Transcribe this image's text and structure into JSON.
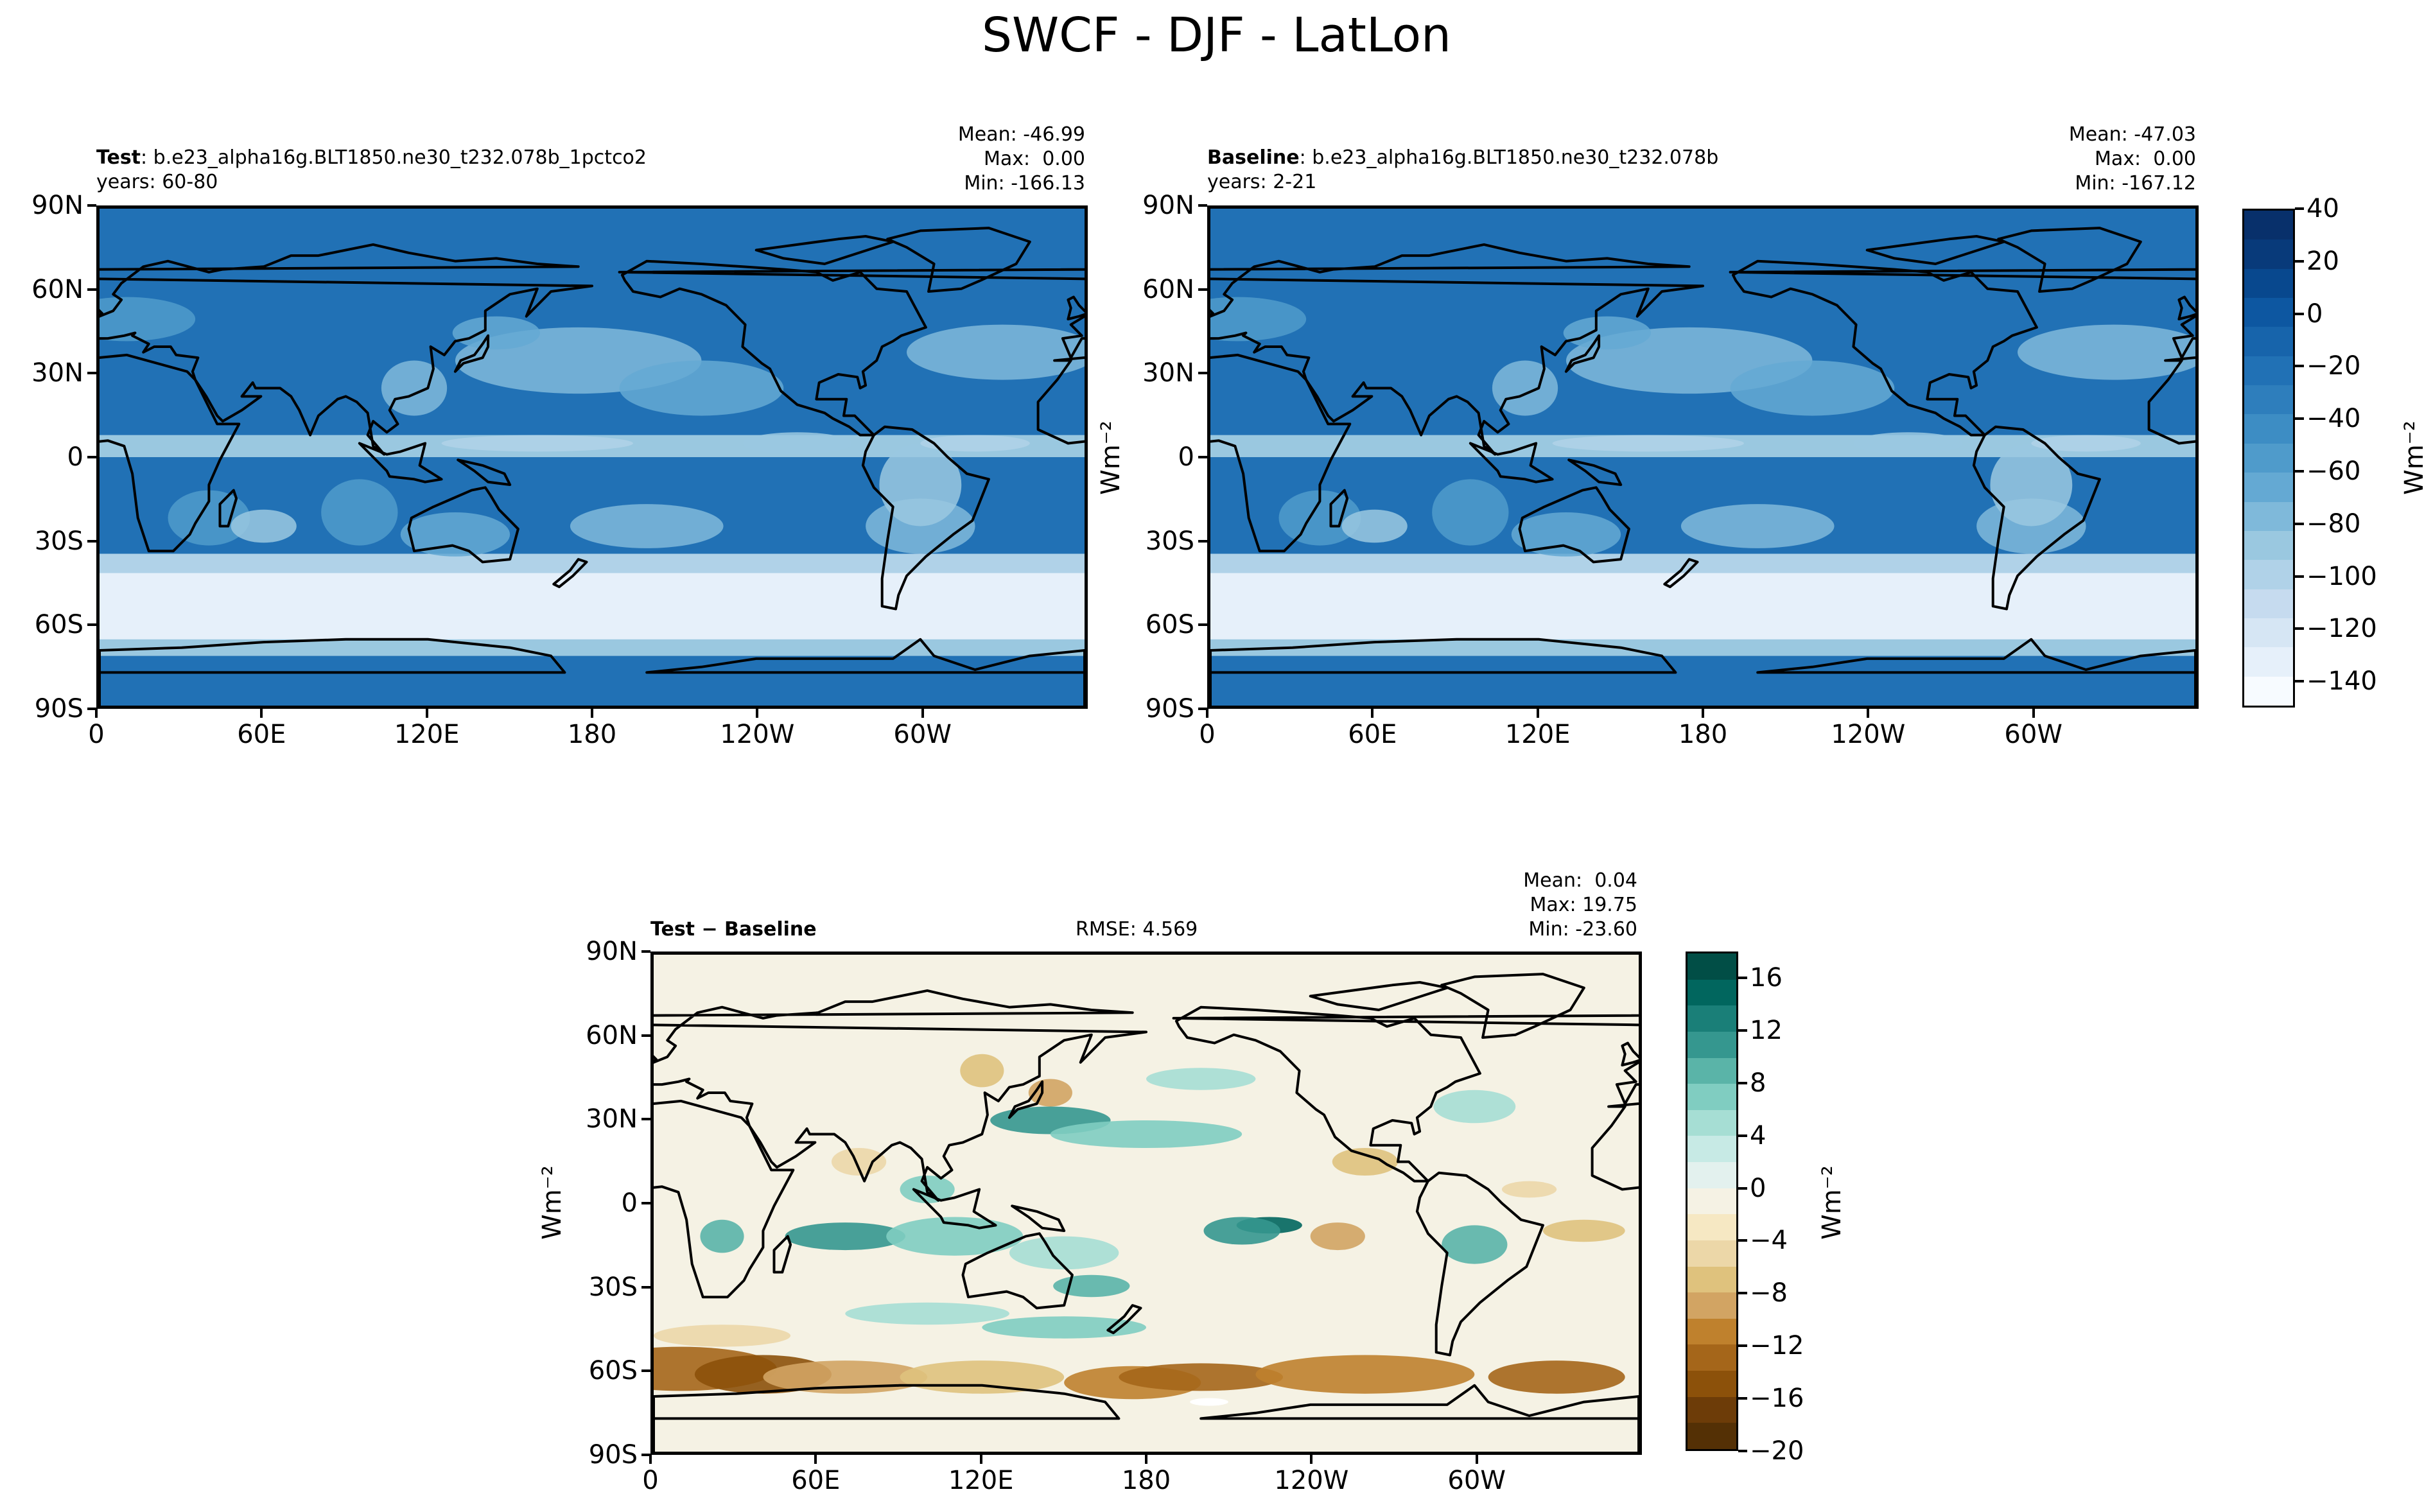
{
  "title": "SWCF - DJF - LatLon",
  "colors": {
    "blues": [
      "#f7fbff",
      "#e6f0fa",
      "#d6e6f4",
      "#c6dbef",
      "#b0d2e8",
      "#9ac8e0",
      "#7fb9da",
      "#64a9d3",
      "#4f9bcb",
      "#3d8dc4",
      "#2e7ebc",
      "#2171b5",
      "#1764ab",
      "#0d57a1",
      "#08488e",
      "#083a7a",
      "#08306b"
    ],
    "diff": [
      "#543005",
      "#6d3c08",
      "#8c510a",
      "#a5661a",
      "#bf812d",
      "#d2a463",
      "#dfc27d",
      "#ecd7a8",
      "#f6e8c3",
      "#f5f2e4",
      "#e3f1ee",
      "#c7eae5",
      "#a6ded4",
      "#80cdc1",
      "#5ab4a8",
      "#35978f",
      "#1a7f78",
      "#01665e",
      "#014e46"
    ]
  },
  "panels": {
    "test": {
      "label_bold": "Test",
      "label_rest": ": b.e23_alpha16g.BLT1850.ne30_t232.078b_1pctco2",
      "years": "years: 60-80",
      "mean": "Mean: -46.99",
      "max": "Max:  0.00",
      "min": "Min: -166.13"
    },
    "baseline": {
      "label_bold": "Baseline",
      "label_rest": ": b.e23_alpha16g.BLT1850.ne30_t232.078b",
      "years": "years: 2-21",
      "mean": "Mean: -47.03",
      "max": "Max:  0.00",
      "min": "Min: -167.12"
    },
    "diff": {
      "label_bold": "Test − Baseline",
      "rmse": "RMSE: 4.569",
      "mean": "Mean:  0.04",
      "max": "Max: 19.75",
      "min": "Min: -23.60",
      "ylabel": "Wm⁻²"
    }
  },
  "axes": {
    "lat_ticks": [
      "90N",
      "60N",
      "30N",
      "0",
      "30S",
      "60S",
      "90S"
    ],
    "lon_ticks": [
      "0",
      "60E",
      "120E",
      "180",
      "120W",
      "60W"
    ],
    "mid_ylabel": "Wm⁻²"
  },
  "colorbars": {
    "top": {
      "label": "Wm⁻²",
      "ticks": [
        "40",
        "20",
        "0",
        "−20",
        "−40",
        "−60",
        "−80",
        "−100",
        "−120",
        "−140"
      ],
      "range": [
        -150,
        40
      ]
    },
    "bottom": {
      "label": "Wm⁻²",
      "ticks": [
        "16",
        "12",
        "8",
        "4",
        "0",
        "−4",
        "−8",
        "−12",
        "−16",
        "−20"
      ],
      "range": [
        -20,
        18
      ]
    }
  },
  "chart_data": [
    {
      "type": "heatmap",
      "name": "Test",
      "variable": "SWCF",
      "season": "DJF",
      "xlabel": "",
      "ylabel": "",
      "xlim": [
        0,
        360
      ],
      "ylim": [
        -90,
        90
      ],
      "x_ticks": [
        "0",
        "60E",
        "120E",
        "180",
        "120W",
        "60W"
      ],
      "y_ticks": [
        "90N",
        "60N",
        "30N",
        "0",
        "30S",
        "60S",
        "90S"
      ],
      "colorbar_range": [
        -150,
        40
      ],
      "stats": {
        "mean": -46.99,
        "max": 0.0,
        "min": -166.13
      }
    },
    {
      "type": "heatmap",
      "name": "Baseline",
      "variable": "SWCF",
      "season": "DJF",
      "xlim": [
        0,
        360
      ],
      "ylim": [
        -90,
        90
      ],
      "colorbar_range": [
        -150,
        40
      ],
      "stats": {
        "mean": -47.03,
        "max": 0.0,
        "min": -167.12
      }
    },
    {
      "type": "heatmap",
      "name": "Test − Baseline",
      "variable": "SWCF",
      "season": "DJF",
      "xlim": [
        0,
        360
      ],
      "ylim": [
        -90,
        90
      ],
      "colorbar_range": [
        -20,
        18
      ],
      "stats": {
        "mean": 0.04,
        "max": 19.75,
        "min": -23.6,
        "rmse": 4.569
      }
    }
  ]
}
